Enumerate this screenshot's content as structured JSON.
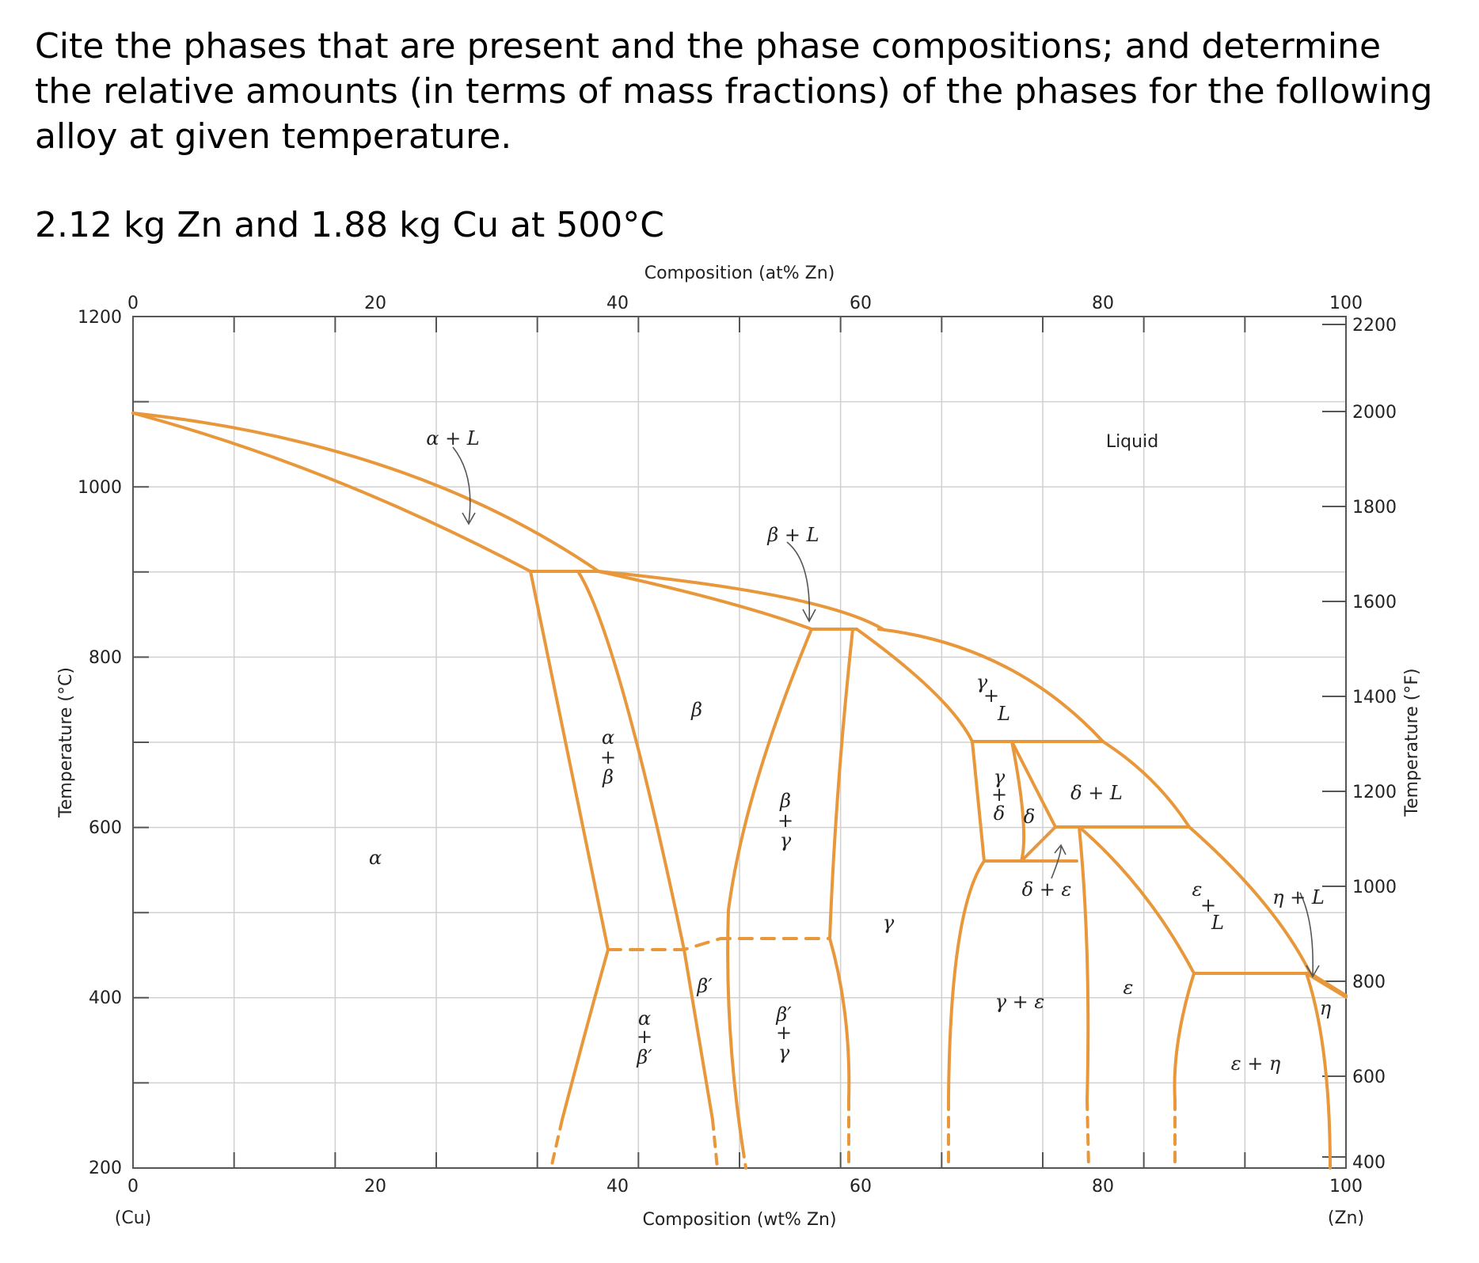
{
  "question": {
    "text": "Cite the phases that are present and the phase compositions; and determine the relative amounts (in terms of mass fractions) of the phases for the following alloy at given temperature.",
    "alloy": "2.12 kg Zn and 1.88 kg Cu at 500°C"
  },
  "diagram": {
    "top_axis_label": "Composition (at% Zn)",
    "top_ticks": [
      "0",
      "20",
      "40",
      "60",
      "80",
      "100"
    ],
    "bottom_axis_label": "Composition (wt% Zn)",
    "bottom_ticks": [
      "0",
      "20",
      "40",
      "60",
      "80",
      "100"
    ],
    "bottom_end_labels": [
      "(Cu)",
      "(Zn)"
    ],
    "left_axis_label": "Temperature (°C)",
    "left_ticks": [
      "1200",
      "1000",
      "800",
      "600",
      "400",
      "200"
    ],
    "right_axis_label": "Temperature (°F)",
    "right_ticks": [
      "2200",
      "2000",
      "1800",
      "1600",
      "1400",
      "1200",
      "1000",
      "800",
      "600",
      "400"
    ],
    "line_color": "#E8973A",
    "regions": {
      "alpha_L": "α + L",
      "liquid": "Liquid",
      "beta_L": "β + L",
      "beta": "β",
      "alpha": "α",
      "alpha_beta": [
        "α",
        "+",
        "β"
      ],
      "beta_gamma": [
        "β",
        "+",
        "γ"
      ],
      "gamma": "γ",
      "gamma_L": [
        "γ",
        "+",
        "L"
      ],
      "gamma_delta": [
        "γ",
        "+",
        "δ"
      ],
      "delta": "δ",
      "delta_L": "δ + L",
      "delta_eps": "δ + ε",
      "eps_L": [
        "ε",
        "+",
        "L"
      ],
      "eta_L": "η + L",
      "eta": "η",
      "alpha_betap": [
        "α",
        "+",
        "β′"
      ],
      "betap": "β′",
      "betap_gamma": [
        "β′",
        "+",
        "γ"
      ],
      "gamma_eps": "γ + ε",
      "eps": "ε",
      "eps_eta": "ε + η"
    }
  }
}
